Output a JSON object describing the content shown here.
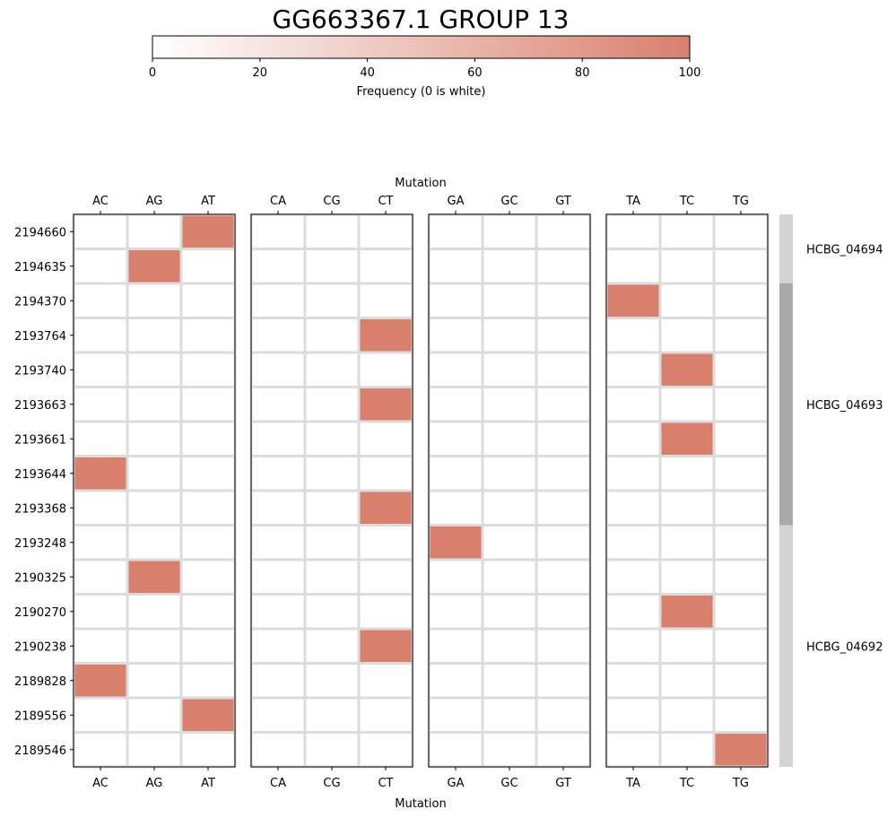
{
  "title": "GG663367.1 GROUP 13",
  "colorbar": {
    "label": "Frequency (0 is white)",
    "min": 0,
    "max": 100,
    "ticks": [
      0,
      20,
      40,
      60,
      80,
      100
    ],
    "color_low": "#ffffff",
    "color_high": "#d9806d"
  },
  "chart_data": {
    "type": "heatmap",
    "xlabel": "Mutation",
    "ylabel": "",
    "panels": [
      {
        "columns": [
          "AC",
          "AG",
          "AT"
        ]
      },
      {
        "columns": [
          "CA",
          "CG",
          "CT"
        ]
      },
      {
        "columns": [
          "GA",
          "GC",
          "GT"
        ]
      },
      {
        "columns": [
          "TA",
          "TC",
          "TG"
        ]
      }
    ],
    "rows": [
      "2194660",
      "2194635",
      "2194370",
      "2193764",
      "2193740",
      "2193663",
      "2193661",
      "2193644",
      "2193368",
      "2193248",
      "2190325",
      "2190270",
      "2190238",
      "2189828",
      "2189556",
      "2189546"
    ],
    "cells": [
      {
        "row": "2194660",
        "col": "AT",
        "value": 100
      },
      {
        "row": "2194635",
        "col": "AG",
        "value": 100
      },
      {
        "row": "2194370",
        "col": "TA",
        "value": 100
      },
      {
        "row": "2193764",
        "col": "CT",
        "value": 100
      },
      {
        "row": "2193740",
        "col": "TC",
        "value": 100
      },
      {
        "row": "2193663",
        "col": "CT",
        "value": 100
      },
      {
        "row": "2193661",
        "col": "TC",
        "value": 100
      },
      {
        "row": "2193644",
        "col": "AC",
        "value": 100
      },
      {
        "row": "2193368",
        "col": "CT",
        "value": 100
      },
      {
        "row": "2193248",
        "col": "GA",
        "value": 100
      },
      {
        "row": "2190325",
        "col": "AG",
        "value": 100
      },
      {
        "row": "2190270",
        "col": "TC",
        "value": 100
      },
      {
        "row": "2190238",
        "col": "CT",
        "value": 100
      },
      {
        "row": "2189828",
        "col": "AC",
        "value": 100
      },
      {
        "row": "2189556",
        "col": "AT",
        "value": 100
      },
      {
        "row": "2189546",
        "col": "TG",
        "value": 100
      }
    ],
    "genes": [
      {
        "name": "HCBG_04694",
        "from_row": "2194660",
        "to_row": "2194635",
        "color": "#d3d3d3"
      },
      {
        "name": "HCBG_04693",
        "from_row": "2194370",
        "to_row": "2193368",
        "color": "#a9a9a9"
      },
      {
        "name": "HCBG_04692",
        "from_row": "2193248",
        "to_row": "2189546",
        "color": "#d3d3d3"
      }
    ]
  }
}
